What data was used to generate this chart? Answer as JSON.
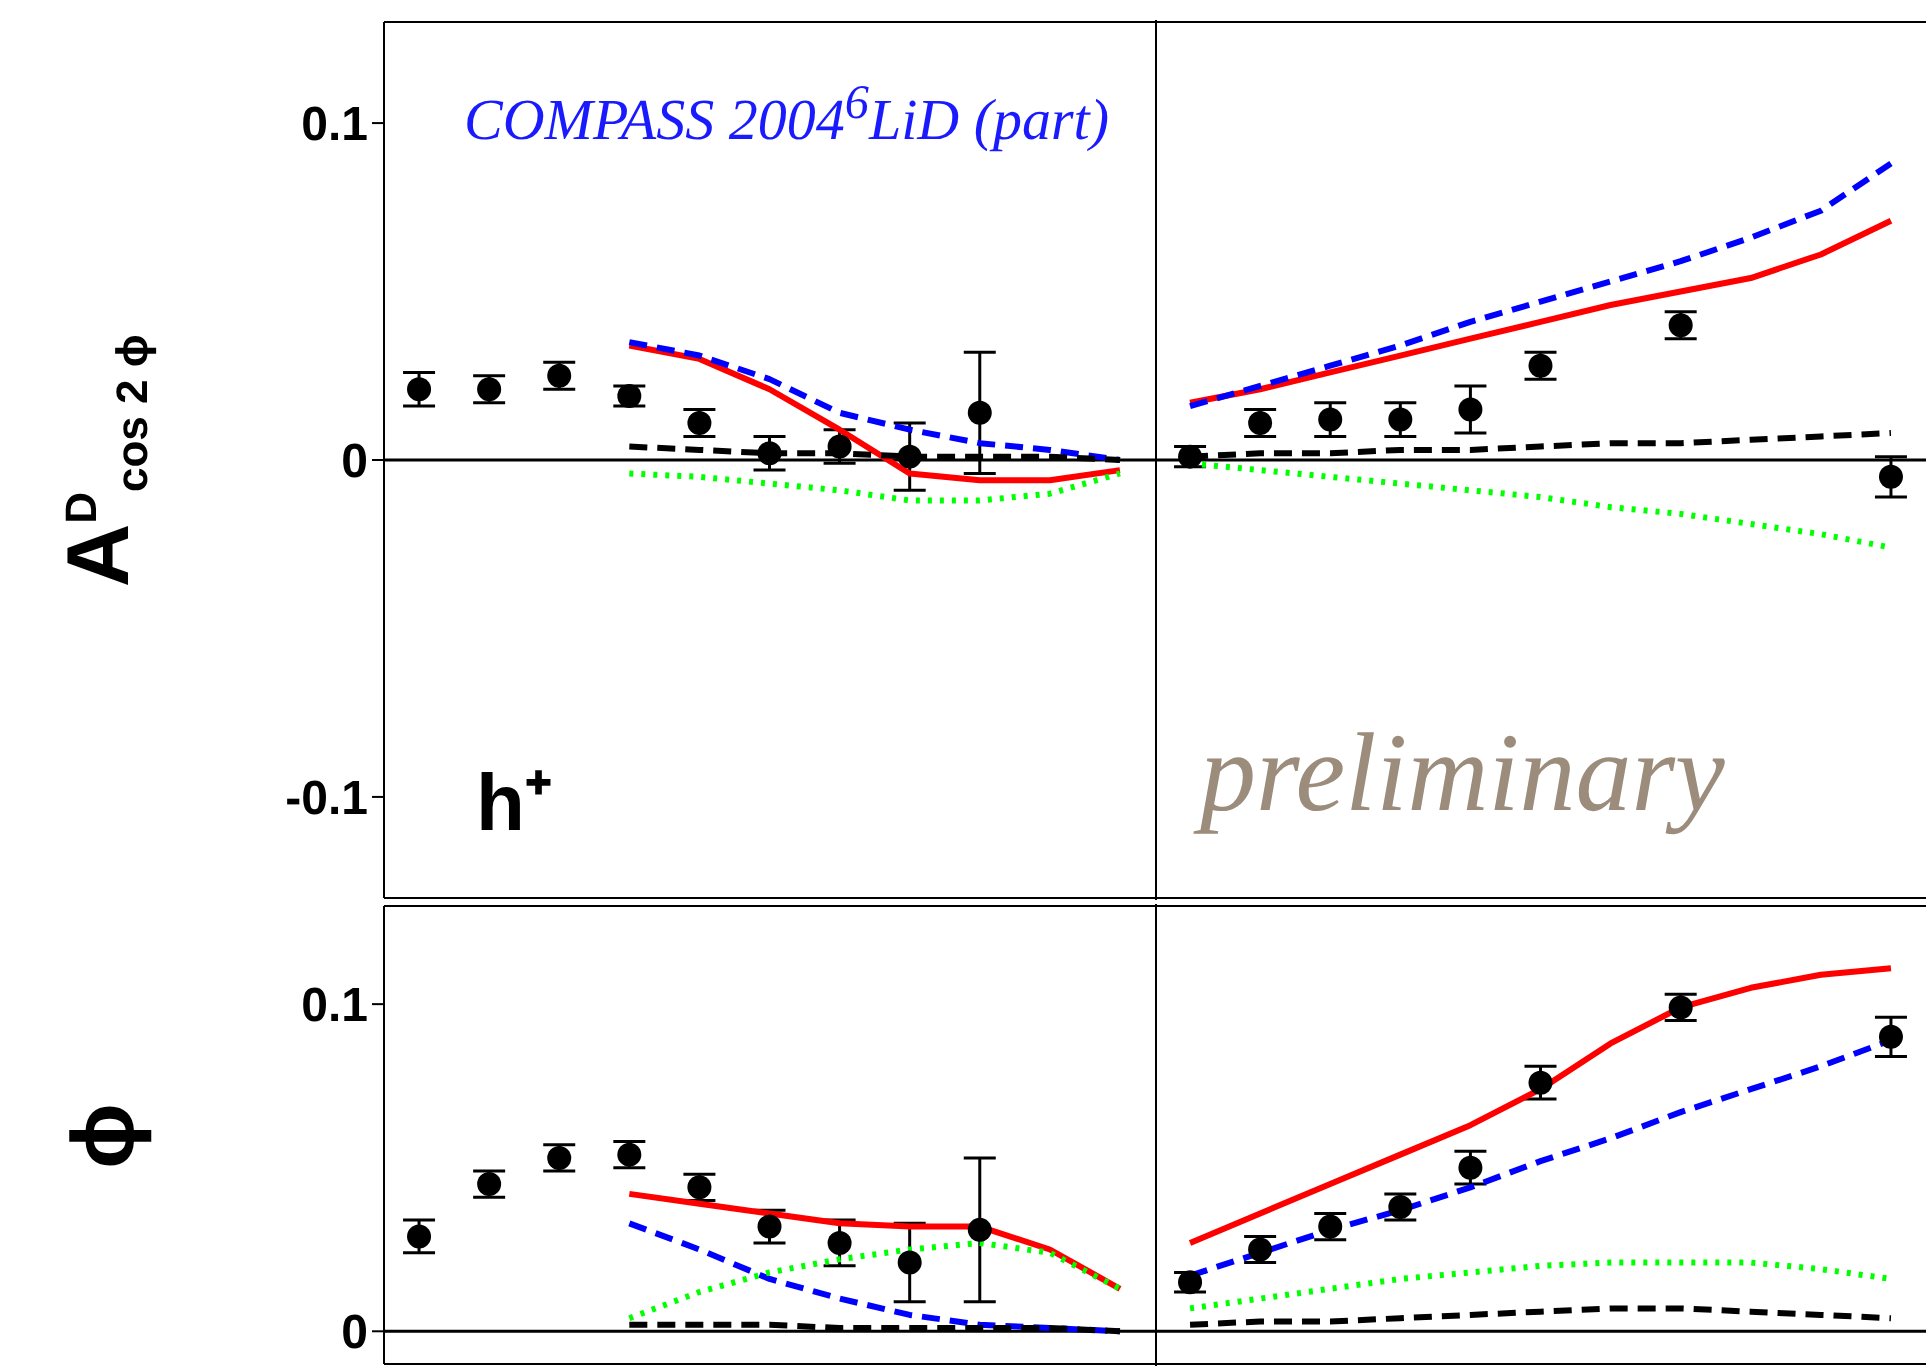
{
  "chart_data": [
    {
      "type": "line",
      "ylabel": "A$^{D}$$_{cos 2 ϕ}$",
      "annotations": [
        "COMPASS 2004$^{6}$LiD (part)",
        "h⁺",
        "preliminary"
      ],
      "categories": [
        null,
        null,
        null,
        null,
        null,
        null,
        null,
        null,
        null,
        null,
        null,
        null,
        null,
        null,
        null,
        null,
        null,
        null,
        null,
        null,
        null,
        null
      ],
      "ylim": [
        -0.13,
        0.13
      ],
      "yticks": [
        -0.1,
        0,
        0.1
      ],
      "tick_labels": "y",
      "ref_lines": [
        {
          "axis": "y",
          "value": 0,
          "color": "#000000"
        }
      ],
      "series": [
        {
          "type": "scatter",
          "marker": "circle",
          "color": "#000000",
          "values": [
            0.021,
            0.021,
            0.025,
            0.019,
            0.011,
            0.002,
            0.004,
            0.001,
            0.014,
            null,
            null,
            0.001,
            0.011,
            0.012,
            0.012,
            0.015,
            0.028,
            null,
            0.04,
            null,
            null,
            -0.005
          ],
          "errors": [
            0.005,
            0.004,
            0.004,
            0.003,
            0.004,
            0.005,
            0.005,
            0.01,
            0.018,
            null,
            null,
            0.003,
            0.004,
            0.005,
            0.005,
            0.007,
            0.004,
            null,
            0.004,
            null,
            null,
            0.006
          ]
        },
        {
          "type": "line",
          "marker": "none",
          "line_style": "solid",
          "color": "#ff0000",
          "values": [
            null,
            null,
            null,
            0.034,
            0.03,
            0.021,
            0.009,
            -0.004,
            -0.006,
            -0.006,
            -0.003,
            0.017,
            0.021,
            0.026,
            0.031,
            0.036,
            0.041,
            0.046,
            0.05,
            0.054,
            0.061,
            0.071
          ]
        },
        {
          "type": "line",
          "marker": "none",
          "line_style": "dashed",
          "color": "#0000ff",
          "values": [
            null,
            null,
            null,
            0.035,
            0.031,
            0.024,
            0.014,
            0.009,
            0.005,
            0.003,
            0,
            0.016,
            0.022,
            0.028,
            0.034,
            0.041,
            0.047,
            0.053,
            0.059,
            0.066,
            0.074,
            0.088
          ]
        },
        {
          "type": "line",
          "marker": "none",
          "line_style": "dotted",
          "color": "#00ff00",
          "values": [
            null,
            null,
            null,
            -0.004,
            -0.005,
            -0.007,
            -0.009,
            -0.012,
            -0.012,
            -0.01,
            -0.004,
            -0.001,
            -0.003,
            -0.005,
            -0.007,
            -0.009,
            -0.011,
            -0.014,
            -0.016,
            -0.019,
            -0.022,
            -0.026
          ]
        },
        {
          "type": "line",
          "marker": "none",
          "line_style": "dashed",
          "color": "#000000",
          "values": [
            null,
            null,
            null,
            0.004,
            0.003,
            0.002,
            0.002,
            0.001,
            0.001,
            0.001,
            0,
            0.001,
            0.002,
            0.002,
            0.003,
            0.003,
            0.004,
            0.005,
            0.005,
            0.006,
            0.007,
            0.008
          ]
        }
      ]
    },
    {
      "type": "line",
      "ylabel": "ϕ",
      "categories": [
        null,
        null,
        null,
        null,
        null,
        null,
        null,
        null,
        null,
        null,
        null,
        null,
        null,
        null,
        null,
        null,
        null,
        null,
        null,
        null,
        null,
        null
      ],
      "ylim": [
        -0.01,
        0.13
      ],
      "yticks": [
        0,
        0.1
      ],
      "tick_labels": "y",
      "ref_lines": [
        {
          "axis": "y",
          "value": 0,
          "color": "#000000"
        }
      ],
      "series": [
        {
          "type": "scatter",
          "marker": "circle",
          "color": "#000000",
          "values": [
            0.029,
            0.045,
            0.053,
            0.054,
            0.044,
            0.032,
            0.027,
            0.021,
            0.031,
            null,
            null,
            0.015,
            0.025,
            0.032,
            0.038,
            0.05,
            0.076,
            null,
            0.099,
            null,
            null,
            0.09
          ],
          "errors": [
            0.005,
            0.004,
            0.004,
            0.004,
            0.004,
            0.005,
            0.007,
            0.012,
            0.022,
            null,
            null,
            0.003,
            0.004,
            0.004,
            0.004,
            0.005,
            0.005,
            null,
            0.004,
            null,
            null,
            0.006
          ]
        },
        {
          "type": "line",
          "marker": "none",
          "line_style": "solid",
          "color": "#ff0000",
          "values": [
            null,
            null,
            null,
            0.042,
            0.039,
            0.036,
            0.033,
            0.032,
            0.032,
            0.025,
            0.013,
            0.027,
            0.036,
            0.045,
            0.054,
            0.063,
            0.074,
            0.088,
            0.099,
            0.105,
            0.109,
            0.111
          ]
        },
        {
          "type": "line",
          "marker": "none",
          "line_style": "dashed",
          "color": "#0000ff",
          "values": [
            null,
            null,
            null,
            0.033,
            0.025,
            0.016,
            0.01,
            0.005,
            0.002,
            0.001,
            0,
            0.017,
            0.024,
            0.031,
            0.037,
            0.044,
            0.052,
            0.059,
            0.067,
            0.074,
            0.081,
            0.089
          ]
        },
        {
          "type": "line",
          "marker": "none",
          "line_style": "dotted",
          "color": "#00ff00",
          "values": [
            null,
            null,
            null,
            0.004,
            0.012,
            0.018,
            0.022,
            0.025,
            0.027,
            0.024,
            0.013,
            0.007,
            0.01,
            0.013,
            0.016,
            0.018,
            0.02,
            0.021,
            0.021,
            0.021,
            0.019,
            0.016
          ]
        },
        {
          "type": "line",
          "marker": "none",
          "line_style": "dashed",
          "color": "#000000",
          "values": [
            null,
            null,
            null,
            0.002,
            0.002,
            0.002,
            0.001,
            0.001,
            0.001,
            0.001,
            0,
            0.002,
            0.003,
            0.003,
            0.004,
            0.005,
            0.006,
            0.007,
            0.007,
            0.006,
            0.005,
            0.004
          ]
        }
      ]
    }
  ]
}
